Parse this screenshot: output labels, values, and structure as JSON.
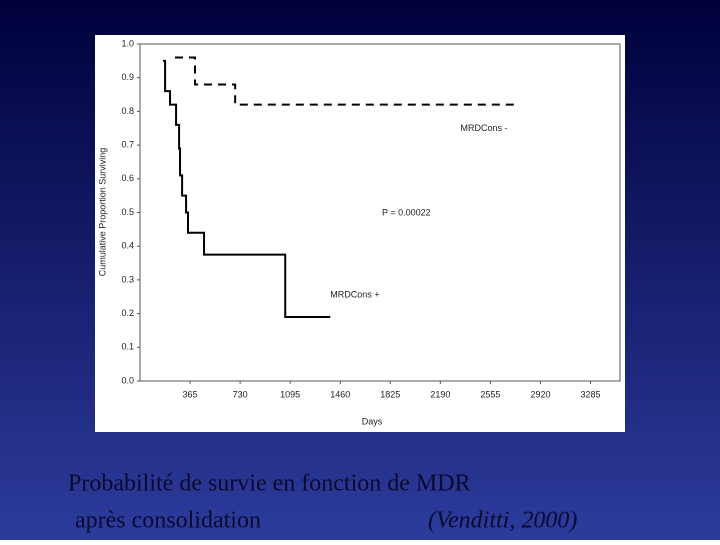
{
  "chart_data": {
    "type": "line",
    "x_label": "Days",
    "y_label": "Cumulative Proportion Surviving",
    "xlim": [
      0,
      3500
    ],
    "xticks": [
      365,
      730,
      1095,
      1460,
      1825,
      2190,
      2555,
      2920,
      3285
    ],
    "ylim": [
      0,
      1
    ],
    "yticks": [
      {
        "value": 0,
        "label": "0.0"
      },
      0.1,
      0.2,
      0.3,
      0.4,
      0.5,
      0.6,
      0.7,
      0.8,
      0.9,
      {
        "value": 1,
        "label": "1.0"
      }
    ],
    "series": [
      {
        "name": "MRDCons -",
        "color": "#000000",
        "line_style": "dashed",
        "x": [
          255,
          401,
          401,
          694,
          694,
          2760
        ],
        "values": [
          0.96,
          0.96,
          0.88,
          0.88,
          0.82,
          0.82
        ]
      },
      {
        "name": "MRDCons +",
        "color": "#000000",
        "line_style": "solid",
        "x": [
          168,
          183,
          183,
          219,
          219,
          263,
          263,
          285,
          285,
          292,
          292,
          307,
          307,
          336,
          336,
          350,
          350,
          467,
          467,
          1059,
          1059,
          1387
        ],
        "values": [
          0.95,
          0.95,
          0.86,
          0.86,
          0.82,
          0.82,
          0.76,
          0.76,
          0.69,
          0.69,
          0.61,
          0.61,
          0.55,
          0.55,
          0.5,
          0.5,
          0.44,
          0.44,
          0.375,
          0.375,
          0.19,
          0.19
        ]
      }
    ],
    "annotation": "P = 0.00022",
    "caption": [
      "Probabilité de survie en fonction de MDR",
      "après consolidation",
      "(Venditti, 2000)"
    ]
  }
}
